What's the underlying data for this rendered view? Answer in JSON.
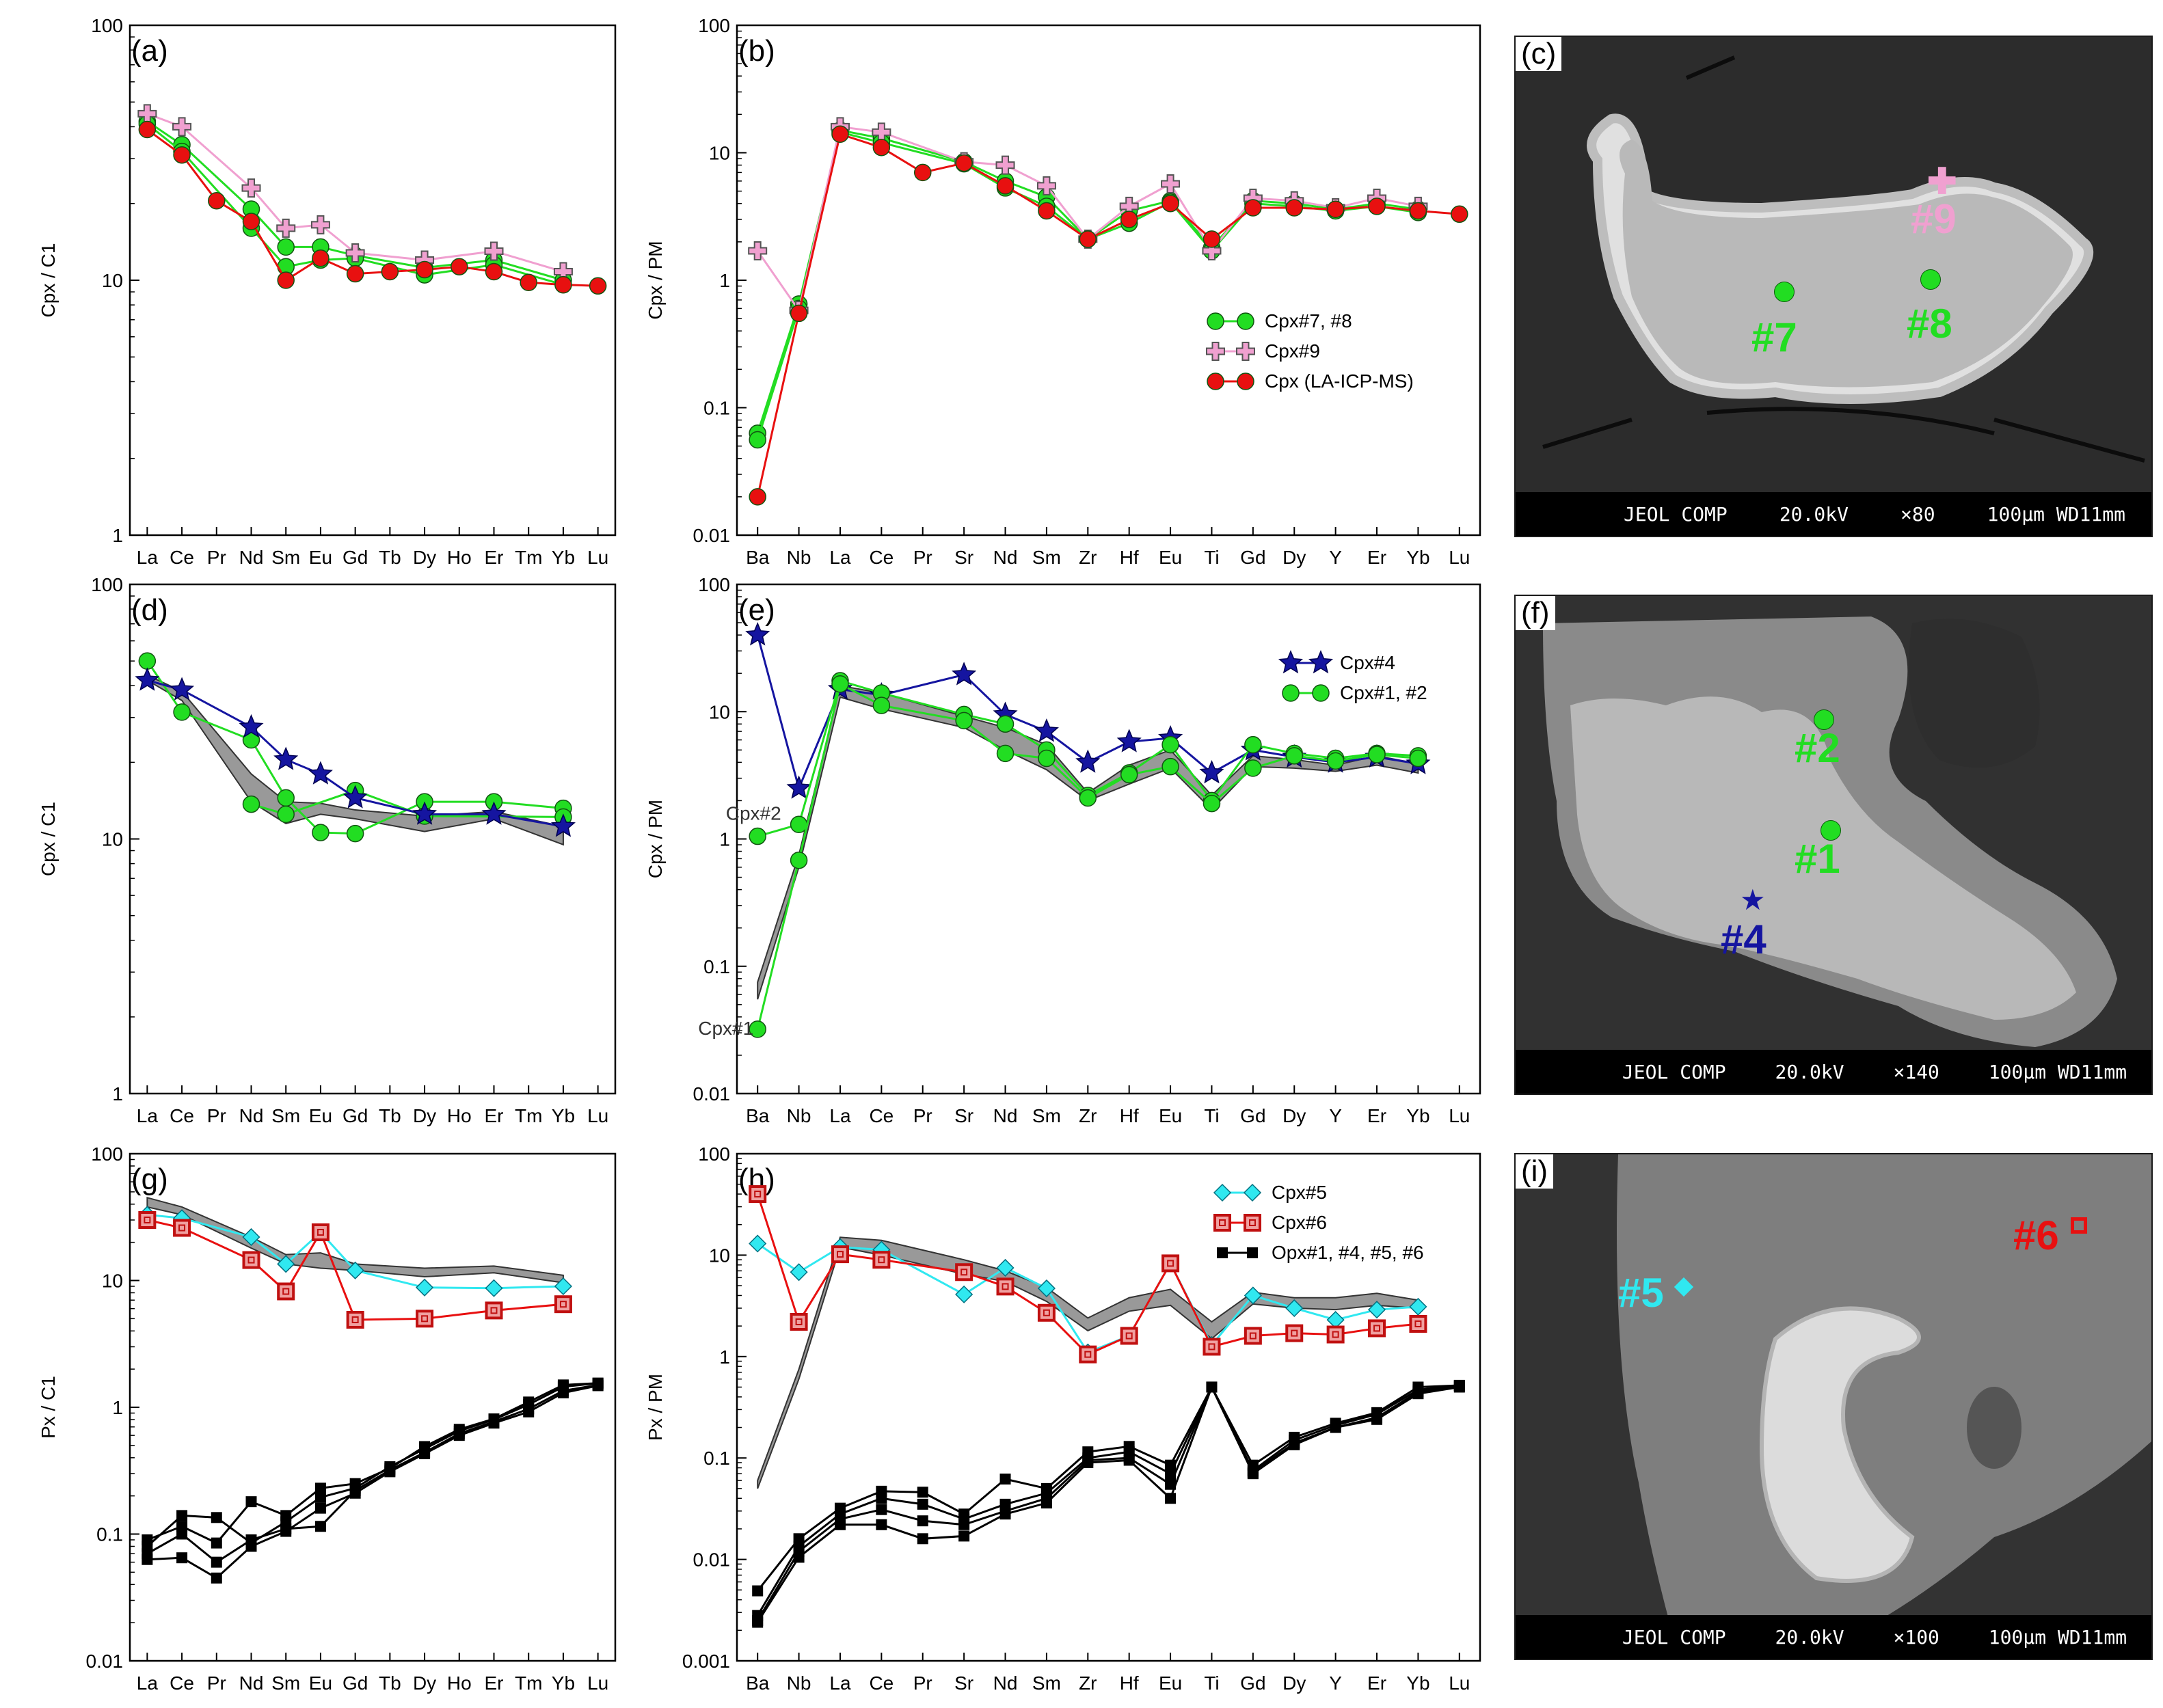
{
  "figure": {
    "panels": [
      {
        "letter": "(a)",
        "ylabel": "Cpx / C1",
        "legend": []
      },
      {
        "letter": "(b)",
        "ylabel": "Cpx / PM",
        "legend": [
          "Cpx#7, #8",
          "Cpx#9",
          "Cpx (LA-ICP-MS)"
        ]
      },
      {
        "letter": "(d)",
        "ylabel": "Cpx / C1",
        "legend": []
      },
      {
        "letter": "(e)",
        "ylabel": "Cpx / PM",
        "legend": [
          "Cpx#4",
          "Cpx#1, #2"
        ]
      },
      {
        "letter": "(g)",
        "ylabel": "Px / C1",
        "legend": []
      },
      {
        "letter": "(h)",
        "ylabel": "Px / PM",
        "legend": [
          "Cpx#5",
          "Cpx#6",
          "Opx#1, #4, #5, #6"
        ]
      }
    ],
    "annotations": {
      "cpx2": "Cpx#2",
      "cpx1": "Cpx#1"
    },
    "images": [
      {
        "letter": "(c)",
        "bar": [
          "JEOL COMP",
          "20.0kV",
          "×80",
          "100μm WD11mm"
        ],
        "spots": [
          "#7",
          "#8",
          "#9"
        ]
      },
      {
        "letter": "(f)",
        "bar": [
          "JEOL COMP",
          "20.0kV",
          "×140",
          "100μm WD11mm"
        ],
        "spots": [
          "#2",
          "#1",
          "#4"
        ]
      },
      {
        "letter": "(i)",
        "bar": [
          "JEOL COMP",
          "20.0kV",
          "×100",
          "100μm WD11mm"
        ],
        "spots": [
          "#5",
          "#6"
        ]
      }
    ]
  },
  "colors": {
    "green": "#22dd22",
    "pink": "#f0a0d0",
    "red": "#e81010",
    "blue": "#1515a0",
    "cyan": "#30e8f0",
    "darkred": "#c01010",
    "black": "#000000",
    "band": "#999999"
  },
  "chart_data": [
    {
      "id": "a",
      "type": "line",
      "yscale": "log",
      "ylim": [
        1,
        100
      ],
      "yticklabels": [
        "1",
        "10",
        "100"
      ],
      "categories": [
        "La",
        "Ce",
        "Pr",
        "Nd",
        "Sm",
        "Eu",
        "Gd",
        "Tb",
        "Dy",
        "Ho",
        "Er",
        "Tm",
        "Yb",
        "Lu"
      ],
      "series": [
        {
          "marker": "circle",
          "color": "green",
          "values": [
            42,
            34,
            null,
            19,
            13.5,
            13.5,
            12.5,
            null,
            11.2,
            null,
            12,
            null,
            10,
            null
          ]
        },
        {
          "marker": "circle",
          "color": "green",
          "values": [
            41,
            32,
            null,
            16,
            11.3,
            12,
            12.2,
            null,
            10.5,
            null,
            11.5,
            null,
            9.6,
            null
          ]
        },
        {
          "marker": "plus",
          "color": "pink",
          "values": [
            45,
            40,
            null,
            23,
            16,
            16.5,
            12.8,
            null,
            12,
            null,
            13,
            null,
            10.8,
            null
          ]
        },
        {
          "marker": "circle",
          "color": "red",
          "values": [
            39,
            31,
            20.5,
            17,
            10,
            12.2,
            10.6,
            10.8,
            11,
            11.3,
            10.8,
            9.8,
            9.6,
            9.5
          ]
        }
      ]
    },
    {
      "id": "b",
      "type": "line",
      "yscale": "log",
      "ylim": [
        0.01,
        100
      ],
      "yticklabels": [
        "0.01",
        "0.1",
        "1",
        "10",
        "100"
      ],
      "categories": [
        "Ba",
        "Nb",
        "La",
        "Ce",
        "Pr",
        "Sr",
        "Nd",
        "Sm",
        "Zr",
        "Hf",
        "Eu",
        "Ti",
        "Gd",
        "Dy",
        "Y",
        "Er",
        "Yb",
        "Lu"
      ],
      "series": [
        {
          "name": "Cpx#7, #8",
          "marker": "circle",
          "color": "green",
          "values": [
            0.063,
            0.65,
            15,
            13,
            null,
            8.5,
            6,
            4.5,
            2.1,
            3.5,
            4.2,
            1.8,
            4.2,
            4,
            3.6,
            4,
            3.6,
            null
          ]
        },
        {
          "marker": "circle",
          "color": "green",
          "values": [
            0.056,
            0.6,
            14.5,
            12,
            null,
            8.2,
            5.3,
            3.8,
            2.1,
            2.8,
            4.1,
            1.7,
            4,
            3.8,
            3.5,
            3.8,
            3.4,
            null
          ]
        },
        {
          "name": "Cpx#9",
          "marker": "plus",
          "color": "pink",
          "values": [
            1.7,
            0.58,
            16,
            14.5,
            null,
            8.5,
            8,
            5.5,
            2.1,
            3.8,
            5.7,
            1.7,
            4.4,
            4.2,
            3.7,
            4.4,
            3.8,
            null
          ]
        },
        {
          "name": "Cpx (LA-ICP-MS)",
          "marker": "circle",
          "color": "red",
          "values": [
            0.02,
            0.55,
            14,
            11,
            7,
            8.3,
            5.5,
            3.5,
            2.1,
            3,
            4,
            2.1,
            3.7,
            3.7,
            3.6,
            3.8,
            3.5,
            3.3
          ]
        }
      ]
    },
    {
      "id": "d",
      "type": "line",
      "yscale": "log",
      "ylim": [
        1,
        100
      ],
      "yticklabels": [
        "1",
        "10",
        "100"
      ],
      "categories": [
        "La",
        "Ce",
        "Pr",
        "Nd",
        "Sm",
        "Eu",
        "Gd",
        "Tb",
        "Dy",
        "Ho",
        "Er",
        "Tm",
        "Yb",
        "Lu"
      ],
      "band": {
        "low": [
          42,
          35,
          null,
          14,
          11.5,
          12.5,
          12,
          null,
          10.7,
          null,
          12,
          null,
          9.5,
          null
        ],
        "high": [
          44,
          38,
          null,
          18,
          14,
          13.8,
          13,
          null,
          12.3,
          null,
          12.8,
          null,
          11.2,
          null
        ]
      },
      "series": [
        {
          "marker": "circle",
          "color": "green",
          "values": [
            50,
            31.5,
            null,
            24.5,
            14.5,
            10.6,
            10.5,
            null,
            14,
            null,
            14,
            null,
            13.2,
            null
          ]
        },
        {
          "marker": "circle",
          "color": "green",
          "values": [
            null,
            null,
            null,
            13.7,
            12.5,
            null,
            15.5,
            null,
            12.3,
            null,
            null,
            null,
            12.2,
            null
          ]
        },
        {
          "name": "Cpx#4",
          "marker": "star",
          "color": "blue",
          "values": [
            42,
            38.5,
            null,
            27.5,
            20.5,
            18,
            14.5,
            null,
            12.5,
            null,
            12.5,
            null,
            11.2,
            null
          ]
        }
      ]
    },
    {
      "id": "e",
      "type": "line",
      "yscale": "log",
      "ylim": [
        0.01,
        100
      ],
      "yticklabels": [
        "0.01",
        "0.1",
        "1",
        "10",
        "100"
      ],
      "categories": [
        "Ba",
        "Nb",
        "La",
        "Ce",
        "Pr",
        "Sr",
        "Nd",
        "Sm",
        "Zr",
        "Hf",
        "Eu",
        "Ti",
        "Gd",
        "Dy",
        "Y",
        "Er",
        "Yb",
        "Lu"
      ],
      "band": {
        "low": [
          0.055,
          0.6,
          13,
          10.5,
          null,
          7.5,
          5,
          3.5,
          2,
          2.7,
          3.6,
          1.7,
          3.7,
          3.6,
          3.4,
          3.8,
          3.3,
          null
        ],
        "high": [
          0.075,
          0.75,
          16,
          14,
          null,
          9.2,
          7.5,
          5.5,
          2.3,
          3.8,
          5,
          2.2,
          4.5,
          4.2,
          3.8,
          4.5,
          3.9,
          null
        ]
      },
      "series": [
        {
          "name": "Cpx#4",
          "marker": "star",
          "color": "blue",
          "values": [
            40,
            2.5,
            15,
            13.5,
            null,
            19.5,
            9.5,
            7,
            4,
            5.8,
            6.2,
            3.3,
            5,
            4.4,
            4,
            4.4,
            3.9,
            null
          ]
        },
        {
          "name": "Cpx#1, #2",
          "marker": "circle",
          "color": "green",
          "values": [
            1.05,
            1.3,
            17.5,
            14,
            null,
            9.5,
            8,
            5,
            2.2,
            3.3,
            5.5,
            2,
            5.5,
            4.7,
            4.3,
            4.7,
            4.5,
            null
          ]
        },
        {
          "marker": "circle",
          "color": "green",
          "values": [
            0.032,
            0.68,
            16.5,
            11.2,
            null,
            8.5,
            4.7,
            4.3,
            2.1,
            3.2,
            3.7,
            1.9,
            3.6,
            4.5,
            4.1,
            4.6,
            4.3,
            null
          ]
        }
      ]
    },
    {
      "id": "g",
      "type": "line",
      "yscale": "log",
      "ylim": [
        0.01,
        100
      ],
      "yticklabels": [
        "0.01",
        "0.1",
        "1",
        "10",
        "100"
      ],
      "categories": [
        "La",
        "Ce",
        "Pr",
        "Nd",
        "Sm",
        "Eu",
        "Gd",
        "Tb",
        "Dy",
        "Ho",
        "Er",
        "Tm",
        "Yb",
        "Lu"
      ],
      "band": {
        "low": [
          38,
          33,
          null,
          18,
          13.5,
          12.5,
          12,
          null,
          10.7,
          null,
          11.5,
          null,
          9.6,
          null
        ],
        "high": [
          45,
          38,
          null,
          22,
          16,
          16.5,
          13.5,
          null,
          12.5,
          null,
          13,
          null,
          11,
          null
        ]
      },
      "series": [
        {
          "name": "Cpx#5",
          "marker": "diamond",
          "color": "cyan",
          "values": [
            33,
            31,
            null,
            22,
            13.5,
            24,
            12,
            null,
            8.8,
            null,
            8.7,
            null,
            9,
            null
          ]
        },
        {
          "name": "Cpx#6",
          "marker": "dsquare",
          "color": "darkred",
          "values": [
            30,
            26,
            null,
            14.5,
            8.2,
            24,
            4.9,
            null,
            5,
            null,
            5.8,
            null,
            6.5,
            null
          ]
        },
        {
          "marker": "square",
          "color": "black",
          "values": [
            0.09,
            0.115,
            0.085,
            0.18,
            0.14,
            0.23,
            0.25,
            0.33,
            0.49,
            0.67,
            0.81,
            1.1,
            1.5,
            1.55
          ]
        },
        {
          "marker": "square",
          "color": "black",
          "values": [
            0.08,
            0.14,
            0.135,
            0.085,
            0.125,
            0.195,
            0.23,
            0.34,
            0.47,
            0.65,
            0.8,
            1.05,
            1.45,
            1.55
          ]
        },
        {
          "marker": "square",
          "color": "black",
          "values": [
            0.07,
            0.1,
            0.06,
            0.09,
            0.11,
            0.115,
            0.22,
            0.32,
            0.44,
            0.62,
            0.77,
            0.97,
            1.35,
            1.5
          ]
        },
        {
          "marker": "square",
          "color": "black",
          "values": [
            0.063,
            0.065,
            0.045,
            0.08,
            0.105,
            0.16,
            0.21,
            0.31,
            0.43,
            0.6,
            0.75,
            0.92,
            1.3,
            1.48
          ]
        }
      ]
    },
    {
      "id": "h",
      "type": "line",
      "yscale": "log",
      "ylim": [
        0.001,
        100
      ],
      "yticklabels": [
        "0.001",
        "0.01",
        "0.1",
        "1",
        "10",
        "100"
      ],
      "categories": [
        "Ba",
        "Nb",
        "La",
        "Ce",
        "Pr",
        "Sr",
        "Nd",
        "Sm",
        "Zr",
        "Hf",
        "Eu",
        "Ti",
        "Gd",
        "Dy",
        "Y",
        "Er",
        "Yb",
        "Lu"
      ],
      "band": {
        "low": [
          0.05,
          0.6,
          12,
          10,
          null,
          6.5,
          5.5,
          3.5,
          1.8,
          2.8,
          3.2,
          1.5,
          3.3,
          3,
          2.9,
          3.2,
          3,
          null
        ],
        "high": [
          0.06,
          0.75,
          15,
          14,
          null,
          9,
          7,
          4.8,
          2.4,
          3.8,
          4.6,
          2.2,
          4.3,
          3.8,
          3.8,
          4.2,
          3.6,
          null
        ]
      },
      "series": [
        {
          "name": "Cpx#5",
          "marker": "diamond",
          "color": "cyan",
          "values": [
            13,
            6.8,
            12,
            11.3,
            null,
            4.1,
            7.5,
            4.7,
            1.1,
            1.6,
            8.3,
            1.3,
            4,
            3,
            2.3,
            2.9,
            3.1,
            null
          ]
        },
        {
          "name": "Cpx#6",
          "marker": "dsquare",
          "color": "darkred",
          "values": [
            40,
            2.2,
            10.2,
            9,
            null,
            6.8,
            4.9,
            2.7,
            1.05,
            1.6,
            8.3,
            1.25,
            1.6,
            1.7,
            1.65,
            1.9,
            2.1,
            null
          ]
        },
        {
          "name": "Opx#1, #4, #5, #6",
          "marker": "square",
          "color": "black",
          "values": [
            0.0049,
            0.016,
            0.032,
            0.047,
            0.046,
            0.028,
            0.062,
            0.05,
            0.115,
            0.13,
            0.085,
            0.5,
            0.085,
            0.16,
            0.22,
            0.28,
            0.5,
            0.52
          ]
        },
        {
          "marker": "square",
          "color": "black",
          "values": [
            0.0028,
            0.0135,
            0.028,
            0.04,
            0.035,
            0.025,
            0.035,
            0.045,
            0.1,
            0.115,
            0.07,
            0.5,
            0.075,
            0.15,
            0.21,
            0.27,
            0.47,
            0.52
          ]
        },
        {
          "marker": "square",
          "color": "black",
          "values": [
            0.0025,
            0.012,
            0.025,
            0.031,
            0.024,
            0.022,
            0.03,
            0.04,
            0.095,
            0.1,
            0.055,
            0.5,
            0.072,
            0.14,
            0.2,
            0.25,
            0.45,
            0.51
          ]
        },
        {
          "marker": "square",
          "color": "black",
          "values": [
            0.0024,
            0.0105,
            0.022,
            0.022,
            0.016,
            0.017,
            0.028,
            0.036,
            0.09,
            0.095,
            0.04,
            0.5,
            0.07,
            0.135,
            0.2,
            0.24,
            0.43,
            0.5
          ]
        }
      ]
    }
  ]
}
